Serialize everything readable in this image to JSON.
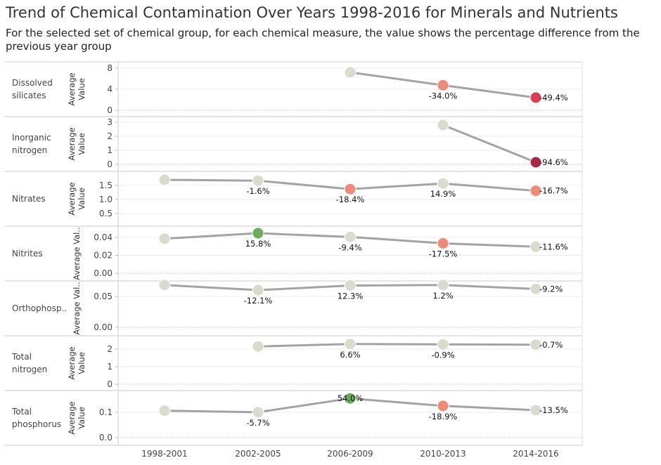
{
  "title": "Trend of Chemical Contamination Over Years 1998-2016 for Minerals and Nutrients",
  "subtitle": "For the selected set of chemical group, for each chemical measure, the value shows the percentage difference from the previous year group",
  "chart_data": {
    "type": "line",
    "x_categories": [
      "1998-2001",
      "2002-2005",
      "2006-2009",
      "2010-2013",
      "2014-2016"
    ],
    "colors": {
      "line": "#a3a3a3",
      "neutral": "#d9dccd",
      "increase": "#6aab5c",
      "decrease_mild": "#ec8c78",
      "decrease_medium": "#e8705d",
      "decrease_strong": "#d83f54",
      "decrease_severe": "#a8284a"
    },
    "panels": [
      {
        "name": "Dissolved silicates",
        "label_lines": [
          "Dissolved",
          "silicates"
        ],
        "ylabel_lines": [
          "Average",
          "Value"
        ],
        "ylim": [
          0,
          8.5
        ],
        "ticks": [
          "0",
          "4",
          "8"
        ],
        "tick_values": [
          0,
          4,
          8
        ],
        "values": [
          null,
          null,
          7.2,
          4.75,
          2.4
        ],
        "pct": [
          null,
          null,
          null,
          "-34.0%",
          "-49.4%"
        ],
        "colors": [
          null,
          null,
          "#d9dccd",
          "#ec8c78",
          "#d83f54"
        ]
      },
      {
        "name": "Inorganic nitrogen",
        "label_lines": [
          "Inorganic",
          "nitrogen"
        ],
        "ylabel_lines": [
          "Average",
          "Value"
        ],
        "ylim": [
          -0.25,
          3.25
        ],
        "ticks": [
          "0",
          "1",
          "2",
          "3"
        ],
        "tick_values": [
          0,
          1,
          2,
          3
        ],
        "values": [
          null,
          null,
          null,
          2.8,
          0.15
        ],
        "pct": [
          null,
          null,
          null,
          null,
          "-94.6%"
        ],
        "colors": [
          null,
          null,
          null,
          "#d9dccd",
          "#a8284a"
        ]
      },
      {
        "name": "Nitrates",
        "label_lines": [
          "Nitrates"
        ],
        "ylabel_lines": [
          "Average",
          "Value"
        ],
        "ylim": [
          0.2,
          1.9
        ],
        "ticks": [
          "0.5",
          "1.0",
          "1.5"
        ],
        "tick_values": [
          0.5,
          1.0,
          1.5
        ],
        "values": [
          1.7,
          1.67,
          1.37,
          1.57,
          1.31
        ],
        "pct": [
          null,
          "-1.6%",
          "-18.4%",
          "14.9%",
          "-16.7%"
        ],
        "colors": [
          "#d9dccd",
          "#d9dccd",
          "#ec8c78",
          "#d9dccd",
          "#ec8c78"
        ]
      },
      {
        "name": "Nitrites",
        "label_lines": [
          "Nitrites"
        ],
        "ylabel_lines": [
          "Average Val.."
        ],
        "ylim": [
          0,
          0.05
        ],
        "ticks": [
          "0.00",
          "0.02",
          "0.04"
        ],
        "tick_values": [
          0,
          0.02,
          0.04
        ],
        "values": [
          0.0386,
          0.0447,
          0.0405,
          0.0334,
          0.0296
        ],
        "pct": [
          null,
          "15.8%",
          "-9.4%",
          "-17.5%",
          "-11.6%"
        ],
        "colors": [
          "#d9dccd",
          "#6aab5c",
          "#d9dccd",
          "#ec8c78",
          "#d9dccd"
        ]
      },
      {
        "name": "Orthophosp..",
        "label_lines": [
          "Orthophosp.."
        ],
        "ylabel_lines": [
          "Average Val.."
        ],
        "ylim": [
          0,
          0.075
        ],
        "ticks": [
          "0.00",
          "0.05"
        ],
        "tick_values": [
          0,
          0.05
        ],
        "values": [
          0.0685,
          0.0602,
          0.0676,
          0.0684,
          0.0621
        ],
        "pct": [
          null,
          "-12.1%",
          "12.3%",
          "1.2%",
          "-9.2%"
        ],
        "colors": [
          "#d9dccd",
          "#d9dccd",
          "#d9dccd",
          "#d9dccd",
          "#d9dccd"
        ]
      },
      {
        "name": "Total nitrogen",
        "label_lines": [
          "Total",
          "nitrogen"
        ],
        "ylabel_lines": [
          "Average",
          "Value"
        ],
        "ylim": [
          -0.2,
          2.5
        ],
        "ticks": [
          "0",
          "1",
          "2"
        ],
        "tick_values": [
          0,
          1,
          2
        ],
        "values": [
          null,
          2.15,
          2.29,
          2.27,
          2.25
        ],
        "pct": [
          null,
          null,
          "6.6%",
          "-0.9%",
          "-0.7%"
        ],
        "colors": [
          null,
          "#d9dccd",
          "#d9dccd",
          "#d9dccd",
          "#d9dccd"
        ]
      },
      {
        "name": "Total phosphorus",
        "label_lines": [
          "Total",
          "phosphorus"
        ],
        "ylabel_lines": [
          "Average",
          "Value"
        ],
        "ylim": [
          -0.01,
          0.163
        ],
        "ticks": [
          "0.0",
          "0.1"
        ],
        "tick_values": [
          0,
          0.1
        ],
        "values": [
          0.1065,
          0.1005,
          0.155,
          0.1255,
          0.1085
        ],
        "pct": [
          null,
          "-5.7%",
          "54.0%",
          "-18.9%",
          "-13.5%"
        ],
        "colors": [
          "#d9dccd",
          "#d9dccd",
          "#6aab5c",
          "#ec8c78",
          "#d9dccd"
        ]
      }
    ]
  }
}
